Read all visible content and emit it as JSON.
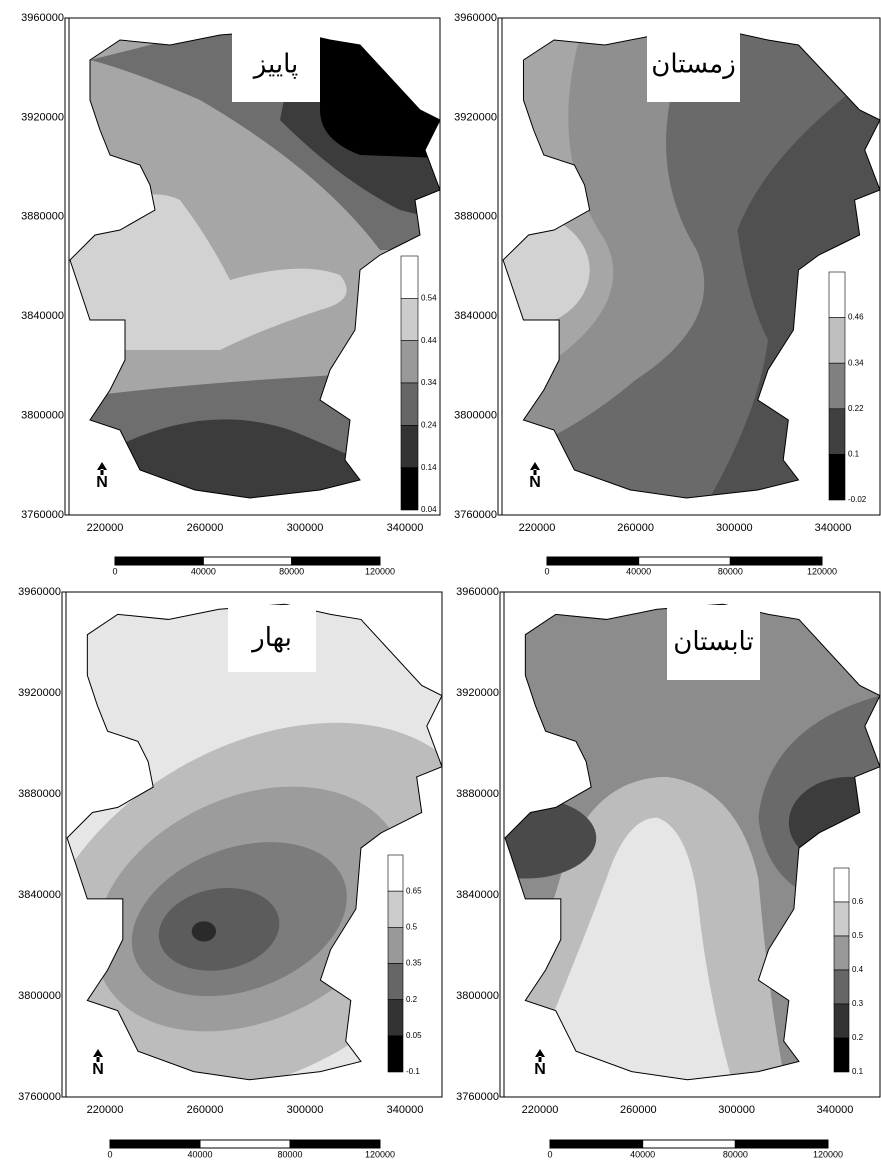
{
  "panels": [
    {
      "title": "پاییز",
      "y_ticks": [
        3760000,
        3800000,
        3840000,
        3880000,
        3920000,
        3960000
      ],
      "x_ticks": [
        220000,
        260000,
        300000,
        340000
      ],
      "legend_ticks": [
        0.54,
        0.44,
        0.34,
        0.24,
        0.14,
        0.04
      ],
      "scale_labels": [
        0,
        40000,
        80000,
        120000
      ],
      "north": "N"
    },
    {
      "title": "زمستان",
      "y_ticks": [
        3760000,
        3800000,
        3840000,
        3880000,
        3920000,
        3960000
      ],
      "x_ticks": [
        220000,
        260000,
        300000,
        340000
      ],
      "legend_ticks": [
        0.46,
        0.34,
        0.22,
        0.1,
        -0.02
      ],
      "scale_labels": [
        0,
        40000,
        80000,
        120000
      ],
      "north": "N"
    },
    {
      "title": "بهار",
      "y_ticks": [
        3760000,
        3800000,
        3840000,
        3880000,
        3920000,
        3960000
      ],
      "x_ticks": [
        220000,
        260000,
        300000,
        340000
      ],
      "legend_ticks": [
        0.65,
        0.5,
        0.35,
        0.2,
        0.05,
        -0.1
      ],
      "scale_labels": [
        0,
        40000,
        80000,
        120000
      ],
      "north": "N"
    },
    {
      "title": "تابستان",
      "y_ticks": [
        3760000,
        3800000,
        3840000,
        3880000,
        3920000,
        3960000
      ],
      "x_ticks": [
        220000,
        260000,
        300000,
        340000
      ],
      "legend_ticks": [
        0.6,
        0.5,
        0.4,
        0.3,
        0.2,
        0.1
      ],
      "scale_labels": [
        0,
        40000,
        80000,
        120000
      ],
      "north": "N"
    }
  ]
}
